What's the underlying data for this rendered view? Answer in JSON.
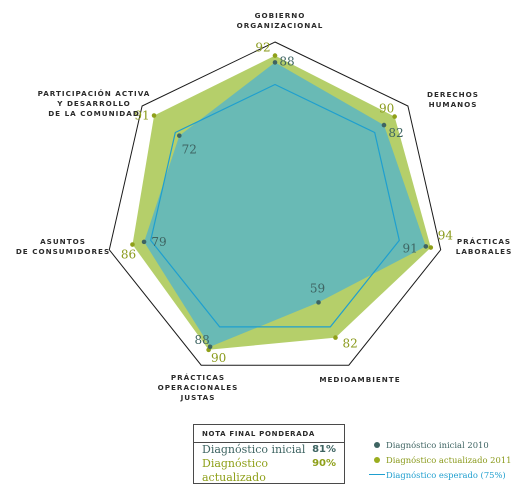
{
  "chart_data": {
    "type": "radar",
    "max": 100,
    "axes": [
      "GOBIERNO ORGANIZACIONAL",
      "DERECHOS HUMANOS",
      "PRÁCTICAS LABORALES",
      "MEDIOAMBIENTE",
      "PRÁCTICAS OPERACIONALES JUSTAS",
      "ASUNTOS DE CONSUMIDORES",
      "PARTICIPACIÓN ACTIVA Y DESARROLLO DE LA COMUNIDAD"
    ],
    "series": [
      {
        "name": "Diagnóstico actualizado 2011",
        "values": [
          92,
          90,
          94,
          82,
          90,
          86,
          91
        ],
        "color": "#b5cf6a",
        "marker": "#8fa01a"
      },
      {
        "name": "Diagnóstico inicial 2010",
        "values": [
          88,
          82,
          91,
          59,
          88,
          79,
          72
        ],
        "color": "#5fb7bf",
        "marker": "#3e6462"
      },
      {
        "name": "Diagnóstico esperado (75%)",
        "values": [
          75,
          75,
          75,
          75,
          75,
          75,
          75
        ],
        "color": "#1f9fcf"
      }
    ]
  },
  "summary": {
    "title": "NOTA FINAL PONDERADA",
    "rows": [
      {
        "label": "Diagnóstico inicial",
        "value": "81%"
      },
      {
        "label": "Diagnóstico actualizado",
        "value": "90%"
      }
    ]
  },
  "legend": {
    "initial": "Diagnóstico inicial 2010",
    "updated": "Diagnóstico actualizado 2011",
    "expected": "Diagnóstico esperado (75%)"
  },
  "colors": {
    "outline": "#1a1a1a",
    "updated_fill": "#b5cf6a",
    "initial_fill": "#5fb7bf",
    "expected_line": "#1f9fcf",
    "initial_marker": "#3e6462",
    "updated_marker": "#8fa01a"
  }
}
